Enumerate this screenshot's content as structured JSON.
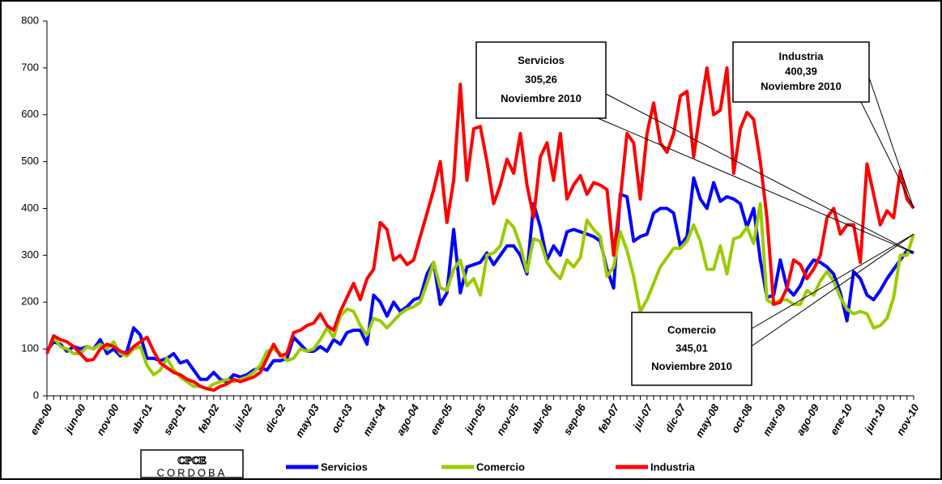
{
  "chart_data": {
    "type": "line",
    "categories": [
      "ene-00",
      null,
      null,
      null,
      null,
      "jun-00",
      null,
      null,
      null,
      null,
      "nov-00",
      null,
      null,
      null,
      null,
      "abr-01",
      null,
      null,
      null,
      null,
      "sep-01",
      null,
      null,
      null,
      null,
      "feb-02",
      null,
      null,
      null,
      null,
      "jul-02",
      null,
      null,
      null,
      null,
      "dic-02",
      null,
      null,
      null,
      null,
      "may-03",
      null,
      null,
      null,
      null,
      "oct-03",
      null,
      null,
      null,
      null,
      "mar-04",
      null,
      null,
      null,
      null,
      "ago-04",
      null,
      null,
      null,
      null,
      "ene-05",
      null,
      null,
      null,
      null,
      "jun-05",
      null,
      null,
      null,
      null,
      "nov-05",
      null,
      null,
      null,
      null,
      "abr-06",
      null,
      null,
      null,
      null,
      "sep-06",
      null,
      null,
      null,
      null,
      "feb-07",
      null,
      null,
      null,
      null,
      "jul-07",
      null,
      null,
      null,
      null,
      "dic-07",
      null,
      null,
      null,
      null,
      "may-08",
      null,
      null,
      null,
      null,
      "oct-08",
      null,
      null,
      null,
      null,
      "mar-09",
      null,
      null,
      null,
      null,
      "ago-09",
      null,
      null,
      null,
      null,
      "ene-10",
      null,
      null,
      null,
      null,
      "jun-10",
      null,
      null,
      null,
      null,
      "nov-10"
    ],
    "series": [
      {
        "name": "Servicios",
        "color": "#0000ff",
        "values": [
          95,
          115,
          110,
          95,
          105,
          100,
          105,
          100,
          120,
          90,
          100,
          85,
          95,
          145,
          130,
          80,
          80,
          75,
          80,
          90,
          70,
          75,
          55,
          35,
          35,
          50,
          35,
          30,
          45,
          40,
          45,
          55,
          60,
          55,
          75,
          75,
          80,
          125,
          110,
          95,
          95,
          105,
          95,
          120,
          110,
          135,
          140,
          140,
          110,
          215,
          200,
          170,
          200,
          180,
          190,
          205,
          210,
          260,
          285,
          195,
          220,
          355,
          220,
          275,
          280,
          285,
          305,
          280,
          300,
          320,
          320,
          300,
          260,
          410,
          360,
          290,
          320,
          300,
          350,
          355,
          350,
          345,
          340,
          330,
          270,
          230,
          430,
          425,
          330,
          340,
          345,
          390,
          400,
          400,
          390,
          320,
          340,
          465,
          420,
          400,
          455,
          415,
          425,
          420,
          410,
          360,
          400,
          290,
          210,
          215,
          290,
          230,
          215,
          235,
          270,
          290,
          285,
          275,
          260,
          220,
          160,
          265,
          250,
          215,
          205,
          225,
          250,
          270,
          290,
          310,
          305.26
        ]
      },
      {
        "name": "Comercio",
        "color": "#99cc00",
        "values": [
          90,
          125,
          105,
          100,
          90,
          90,
          105,
          100,
          110,
          100,
          115,
          90,
          85,
          100,
          105,
          65,
          45,
          55,
          80,
          55,
          40,
          30,
          20,
          20,
          15,
          25,
          30,
          35,
          30,
          35,
          40,
          50,
          65,
          95,
          100,
          90,
          75,
          80,
          100,
          95,
          100,
          120,
          145,
          125,
          170,
          185,
          180,
          150,
          130,
          165,
          160,
          145,
          160,
          175,
          185,
          190,
          200,
          240,
          285,
          230,
          225,
          270,
          290,
          235,
          250,
          215,
          300,
          305,
          320,
          375,
          360,
          320,
          265,
          335,
          330,
          285,
          265,
          250,
          290,
          275,
          295,
          375,
          355,
          340,
          255,
          275,
          350,
          310,
          255,
          180,
          205,
          240,
          275,
          295,
          315,
          315,
          330,
          365,
          330,
          270,
          270,
          320,
          260,
          335,
          340,
          360,
          325,
          410,
          205,
          195,
          205,
          205,
          195,
          195,
          225,
          215,
          245,
          265,
          245,
          210,
          185,
          175,
          180,
          175,
          145,
          150,
          165,
          210,
          300,
          300,
          345.01
        ]
      },
      {
        "name": "Industria",
        "color": "#ff0000",
        "values": [
          90,
          128,
          120,
          115,
          105,
          90,
          75,
          78,
          100,
          110,
          105,
          95,
          90,
          105,
          115,
          125,
          95,
          70,
          60,
          50,
          45,
          35,
          30,
          20,
          15,
          12,
          20,
          25,
          35,
          30,
          35,
          40,
          50,
          80,
          110,
          85,
          90,
          135,
          140,
          150,
          155,
          175,
          150,
          140,
          180,
          210,
          240,
          205,
          250,
          270,
          370,
          355,
          290,
          300,
          280,
          290,
          340,
          390,
          440,
          500,
          370,
          460,
          665,
          460,
          570,
          575,
          500,
          410,
          450,
          505,
          475,
          560,
          450,
          380,
          510,
          540,
          460,
          560,
          420,
          450,
          470,
          430,
          455,
          450,
          440,
          300,
          420,
          560,
          540,
          420,
          560,
          625,
          540,
          520,
          560,
          640,
          650,
          510,
          610,
          700,
          600,
          610,
          700,
          475,
          570,
          605,
          590,
          500,
          380,
          195,
          200,
          230,
          290,
          280,
          250,
          270,
          300,
          380,
          400,
          345,
          365,
          365,
          285,
          495,
          430,
          365,
          395,
          380,
          480,
          420,
          400.39
        ]
      }
    ],
    "ylim": [
      0,
      800
    ],
    "yticks": [
      0,
      100,
      200,
      300,
      400,
      500,
      600,
      700,
      800
    ],
    "annotations": [
      {
        "series": 0,
        "lines": [
          "Servicios",
          "305,26",
          "Noviembre 2010"
        ]
      },
      {
        "series": 2,
        "lines": [
          "Industria",
          "400,39",
          "Noviembre 2010"
        ]
      },
      {
        "series": 1,
        "lines": [
          "Comercio",
          "345,01",
          "Noviembre 2010"
        ]
      }
    ],
    "logo": {
      "text": "CPCE",
      "subtext": "CORDOBA"
    }
  }
}
